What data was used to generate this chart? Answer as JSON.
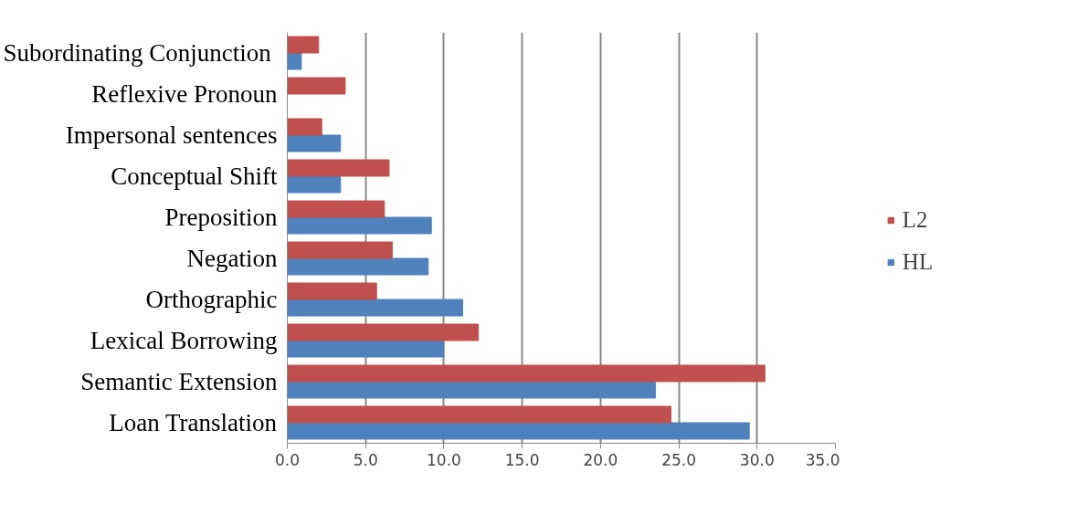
{
  "chart_data": {
    "type": "bar",
    "orientation": "horizontal",
    "categories": [
      "Subordinating  Conjunction",
      "Reflexive Pronoun",
      "Impersonal sentences",
      "Conceptual Shift",
      "Preposition",
      "Negation",
      "Orthographic",
      "Lexical Borrowing",
      "Semantic Extension",
      "Loan Translation"
    ],
    "series": [
      {
        "name": "HL",
        "color": "#4f81bd",
        "values": [
          0.9,
          0,
          3.4,
          3.4,
          9.2,
          9.0,
          11.2,
          10.0,
          23.5,
          29.5
        ]
      },
      {
        "name": "L2",
        "color": "#c0504d",
        "values": [
          2.0,
          3.7,
          2.2,
          6.5,
          6.2,
          6.7,
          5.7,
          12.2,
          30.5,
          24.5
        ]
      }
    ],
    "xlim": [
      0,
      35
    ],
    "xticks": [
      {
        "value": 0,
        "label": "0.0"
      },
      {
        "value": 5,
        "label": "5.0"
      },
      {
        "value": 10,
        "label": "10.0"
      },
      {
        "value": 15,
        "label": "15.0"
      },
      {
        "value": 20,
        "label": "20.0"
      },
      {
        "value": 25,
        "label": "25.0"
      },
      {
        "value": 30,
        "label": "30.0"
      },
      {
        "value": 35,
        "label": "35.0"
      }
    ],
    "grid": "x",
    "legend": "right"
  }
}
